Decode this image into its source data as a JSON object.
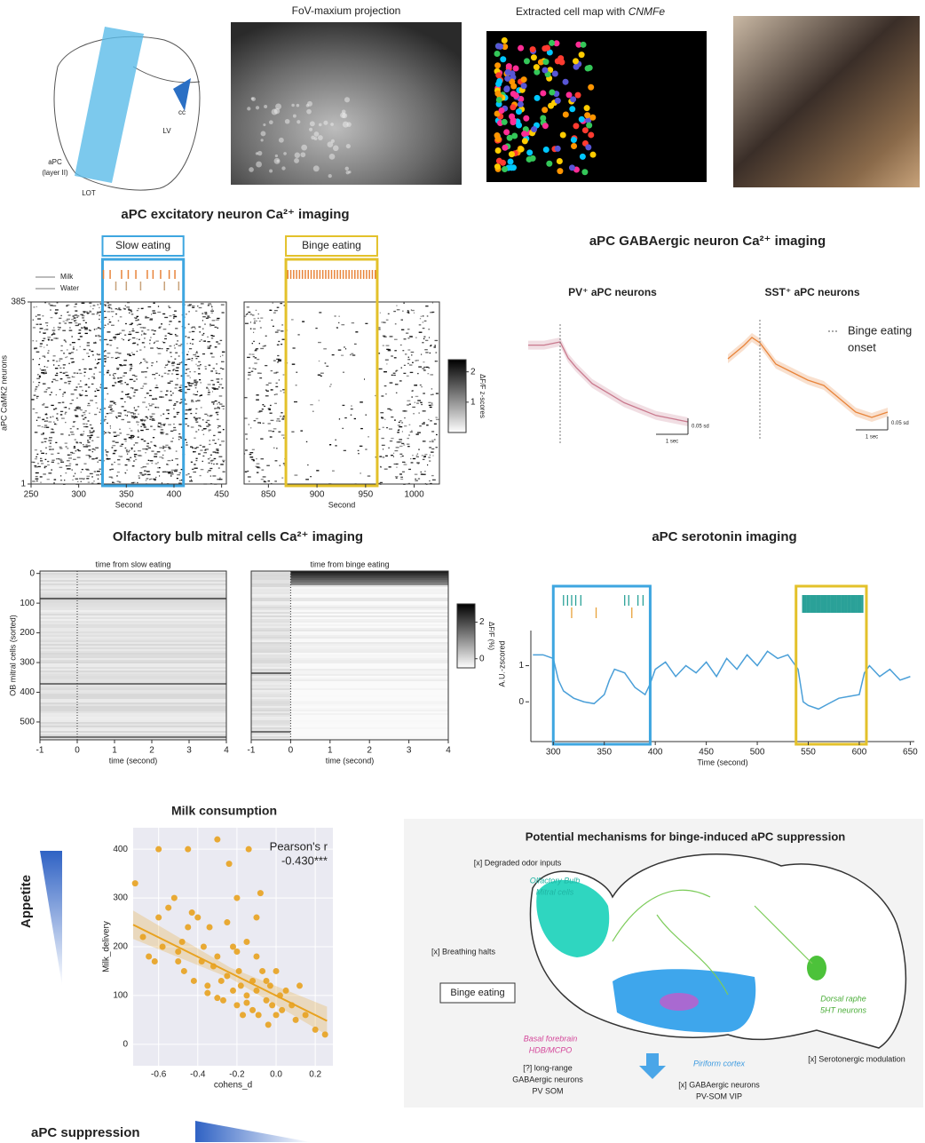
{
  "figure": {
    "anatomy_labels": [
      "cc",
      "LV",
      "aPC",
      "(layer II)",
      "LOT"
    ],
    "fov_title": "FoV-maxium projection",
    "cell_map_title": "Extracted cell map with ",
    "cell_map_method": "CNMFe",
    "excitatory_title": "aPC excitatory neuron Ca²⁺ imaging",
    "gaba_title": "aPC GABAergic neuron Ca²⁺ imaging",
    "ob_title": "Olfactory bulb mitral cells Ca²⁺ imaging",
    "serotonin_title": "aPC serotonin imaging",
    "appetite": "Appetite",
    "suppression": "aPC suppression"
  },
  "chart_data": [
    {
      "type": "raster",
      "xlabel": "Second",
      "ylabel": "aPC CaMK2 neurons",
      "xlim": [
        250,
        455
      ],
      "xticks": [
        250,
        300,
        350,
        400,
        450
      ],
      "ylim": [
        1,
        385
      ],
      "yticks": [
        1,
        385
      ],
      "highlight": {
        "label": "Slow eating",
        "x": [
          325,
          410
        ],
        "color": "#3ea6e0"
      },
      "series": [
        {
          "name": "Milk",
          "color": "#e8843a",
          "events": [
            326,
            333,
            345,
            352,
            360,
            372,
            378,
            386,
            395,
            401
          ]
        },
        {
          "name": "Water",
          "color": "#c8a27a",
          "events": [
            339,
            350,
            365,
            390,
            405
          ]
        }
      ]
    },
    {
      "type": "raster",
      "xlabel": "Second",
      "xlim": [
        825,
        1026
      ],
      "xticks": [
        850,
        900,
        950,
        1000
      ],
      "ylim": [
        1,
        385
      ],
      "highlight": {
        "label": "Binge eating",
        "x": [
          868,
          962
        ],
        "color": "#e3c12a"
      },
      "series": [
        {
          "color": "#e8843a",
          "events": [
            870,
            873,
            876,
            879,
            882,
            885,
            888,
            891,
            894,
            897,
            900,
            903,
            906,
            909,
            912,
            915,
            918,
            921,
            924,
            927,
            930,
            933,
            936,
            939,
            942,
            945,
            948,
            951,
            954,
            957,
            960
          ]
        }
      ],
      "colorbar": {
        "label": "ΔF/F z-scores",
        "lim": [
          0,
          2.4
        ],
        "ticks": [
          1,
          2
        ]
      }
    },
    {
      "type": "trace",
      "title": "PV⁺ aPC neurons",
      "color": "#c97a8e",
      "x": [
        -1,
        -0.5,
        0,
        0.25,
        0.5,
        1,
        1.5,
        2,
        2.5,
        3,
        3.5,
        4
      ],
      "values": [
        0.12,
        0.12,
        0.13,
        0.08,
        0.05,
        0.0,
        -0.03,
        -0.06,
        -0.08,
        -0.1,
        -0.11,
        -0.12
      ],
      "onset": 0,
      "scalebar": {
        "y": {
          "value": 0.05,
          "label": "0.05 sd"
        },
        "x": {
          "value": 1,
          "label": "1 sec"
        }
      }
    },
    {
      "type": "trace",
      "title": "SST⁺ aPC neurons",
      "color": "#e8843a",
      "x": [
        -1,
        -0.5,
        -0.25,
        0,
        0.5,
        1,
        1.5,
        2,
        2.5,
        3,
        3.5,
        4
      ],
      "values": [
        0.0,
        0.05,
        0.08,
        0.06,
        -0.02,
        -0.05,
        -0.08,
        -0.1,
        -0.15,
        -0.2,
        -0.22,
        -0.2
      ],
      "onset": 0,
      "onset_label": [
        "Binge eating",
        "onset"
      ],
      "scalebar": {
        "y": {
          "value": 0.05,
          "label": "0.05 sd"
        },
        "x": {
          "value": 1,
          "label": "1 sec"
        }
      }
    },
    {
      "type": "heatmap",
      "subtitle": "time from slow eating",
      "xlabel": "time (second)",
      "ylabel": "OB mitral cells (sorted)",
      "xlim": [
        -1,
        4
      ],
      "xticks": [
        -1,
        0,
        1,
        2,
        3,
        4
      ],
      "ylim": [
        -8,
        560
      ],
      "y_inverted": true,
      "yticks": [
        0,
        100,
        200,
        300,
        400,
        500
      ]
    },
    {
      "type": "heatmap",
      "subtitle": "time from binge eating",
      "xlabel": "time (second)",
      "xlim": [
        -1,
        4
      ],
      "xticks": [
        -1,
        0,
        1,
        2,
        3,
        4
      ],
      "ylim": [
        -8,
        560
      ],
      "y_inverted": true,
      "colorbar": {
        "label": "ΔF/F (%)",
        "lim": [
          -0.5,
          3
        ],
        "ticks": [
          0,
          2
        ]
      }
    },
    {
      "type": "line",
      "xlabel": "Time (second)",
      "ylabel": "A.U.-zscored",
      "color": "#4a9fd8",
      "xlim": [
        278,
        654
      ],
      "xticks": [
        300,
        350,
        400,
        450,
        500,
        550,
        600,
        650
      ],
      "ylim": [
        -1.1,
        3.2
      ],
      "yticks": [
        0,
        1
      ],
      "x": [
        280,
        290,
        300,
        305,
        310,
        320,
        330,
        340,
        350,
        355,
        360,
        370,
        380,
        390,
        395,
        400,
        410,
        420,
        430,
        440,
        450,
        460,
        470,
        480,
        490,
        500,
        510,
        520,
        530,
        540,
        545,
        550,
        560,
        570,
        580,
        590,
        600,
        605,
        610,
        620,
        630,
        640,
        650
      ],
      "values": [
        1.3,
        1.3,
        1.2,
        0.6,
        0.3,
        0.1,
        0.0,
        -0.05,
        0.2,
        0.6,
        0.9,
        0.8,
        0.4,
        0.2,
        0.5,
        0.9,
        1.1,
        0.7,
        1.0,
        0.8,
        1.1,
        0.7,
        1.2,
        0.9,
        1.3,
        1.0,
        1.4,
        1.2,
        1.3,
        0.9,
        0.0,
        -0.1,
        -0.2,
        -0.05,
        0.1,
        0.15,
        0.2,
        0.8,
        1.0,
        0.7,
        0.9,
        0.6,
        0.7
      ],
      "highlights": [
        {
          "x": [
            300,
            395
          ],
          "color": "#3ea6e0"
        },
        {
          "x": [
            538,
            607
          ],
          "color": "#e3c12a"
        }
      ],
      "events": [
        {
          "color": "#2aa198",
          "times": [
            310,
            314,
            318,
            322,
            327,
            370,
            374,
            383,
            388
          ]
        },
        {
          "color": "#e8a23a",
          "times": [
            318,
            342,
            377
          ]
        },
        {
          "color": "#2aa198",
          "times": [
            545,
            547,
            549,
            551,
            553,
            555,
            557,
            559,
            561,
            563,
            565,
            567,
            569,
            571,
            573,
            575,
            577,
            579,
            581,
            583,
            585,
            587,
            589,
            591,
            593,
            595,
            597,
            599,
            601,
            603
          ]
        }
      ]
    },
    {
      "type": "scatter",
      "title": "Milk consumption",
      "xlabel": "cohens_d",
      "ylabel": "Milk_delivery",
      "color": "#e8a21f",
      "annotation": [
        "Pearson's r",
        "-0.430***"
      ],
      "xlim": [
        -0.73,
        0.29
      ],
      "xticks": [
        -0.6,
        -0.4,
        -0.2,
        {
          "value": 0,
          "label": "0.0"
        },
        0.2
      ],
      "ylim": [
        -44,
        444
      ],
      "yticks": [
        0,
        100,
        200,
        300,
        400
      ],
      "x": [
        -0.72,
        -0.68,
        -0.65,
        -0.62,
        -0.6,
        -0.58,
        -0.55,
        -0.52,
        -0.5,
        -0.48,
        -0.47,
        -0.45,
        -0.43,
        -0.42,
        -0.4,
        -0.38,
        -0.37,
        -0.35,
        -0.34,
        -0.32,
        -0.3,
        -0.3,
        -0.28,
        -0.27,
        -0.25,
        -0.25,
        -0.24,
        -0.22,
        -0.22,
        -0.2,
        -0.2,
        -0.19,
        -0.18,
        -0.17,
        -0.15,
        -0.15,
        -0.14,
        -0.12,
        -0.12,
        -0.1,
        -0.1,
        -0.09,
        -0.08,
        -0.07,
        -0.05,
        -0.05,
        -0.04,
        -0.03,
        -0.02,
        0.0,
        0.0,
        0.02,
        0.03,
        0.05,
        0.08,
        0.1,
        0.12,
        0.15,
        0.2,
        0.25,
        -0.6,
        -0.45,
        -0.3,
        -0.2,
        -0.1,
        -0.35,
        -0.5,
        -0.15
      ],
      "values": [
        330,
        220,
        180,
        170,
        260,
        200,
        280,
        300,
        190,
        210,
        150,
        400,
        270,
        130,
        260,
        170,
        200,
        120,
        240,
        160,
        420,
        180,
        130,
        90,
        250,
        140,
        370,
        110,
        200,
        300,
        80,
        150,
        120,
        60,
        210,
        100,
        400,
        130,
        70,
        180,
        110,
        60,
        310,
        150,
        90,
        130,
        40,
        120,
        80,
        150,
        60,
        100,
        70,
        110,
        80,
        50,
        120,
        60,
        30,
        20,
        400,
        240,
        95,
        190,
        260,
        105,
        170,
        85
      ],
      "fit": {
        "x": [
          -0.73,
          0.26
        ],
        "y": [
          245,
          48
        ]
      }
    }
  ],
  "diagram": {
    "title": "Potential mechanisms for binge-induced aPC suppression",
    "labels": [
      "[x] Degraded odor inputs",
      "Olfactory Bulb",
      "Mitral cells",
      "[x] Breathing halts",
      "Binge eating",
      "Basal forebrain",
      "HDB/MCPO",
      "[?] long-range",
      "GABAergic neurons",
      "PV SOM",
      "Piriform cortex",
      "[x] GABAergic neurons",
      "PV-SOM VIP",
      "Dorsal raphe",
      "5HT neurons",
      "[x] Serotonergic modulation"
    ]
  }
}
